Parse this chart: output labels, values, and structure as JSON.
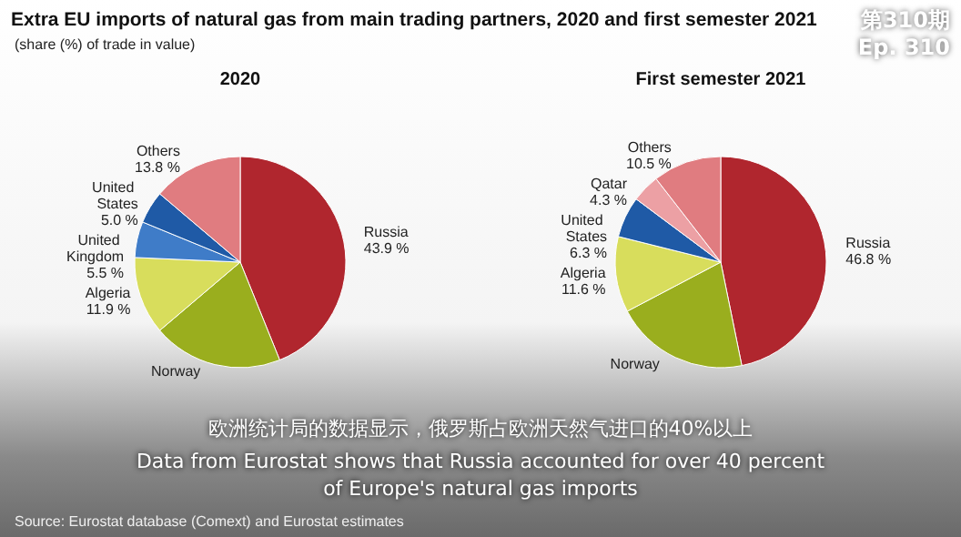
{
  "chart_data": [
    {
      "type": "other",
      "title": "Extra EU imports of natural gas from main trading partners, 2020 and first semester 2021",
      "subtitle": "(share (%) of trade in value)",
      "annotations": [
        "第310期",
        "Ep. 310",
        "欧洲统计局的数据显示，俄罗斯占欧洲天然气进口的40%以上",
        "Data from Eurostat shows that Russia accounted for over 40 percent of Europe's natural gas imports",
        "Source: Eurostat database (Comext) and Eurostat estimates"
      ]
    },
    {
      "type": "pie",
      "title": "2020",
      "categories": [
        "Russia",
        "Norway",
        "Algeria",
        "United Kingdom",
        "United States",
        "Others"
      ],
      "values": [
        43.9,
        19.9,
        11.9,
        5.5,
        5.0,
        13.8
      ],
      "value_labels": [
        "43.9 %",
        null,
        "11.9 %",
        "5.5 %",
        "5.0 %",
        "13.8 %"
      ],
      "colors": [
        "#b0262e",
        "#9aae1e",
        "#d8dd5c",
        "#3f7cc8",
        "#1f5aa6",
        "#e07c80"
      ]
    },
    {
      "type": "pie",
      "title": "First semester 2021",
      "categories": [
        "Russia",
        "Norway",
        "Algeria",
        "United States",
        "Qatar",
        "Others"
      ],
      "values": [
        46.8,
        20.5,
        11.6,
        6.3,
        4.3,
        10.5
      ],
      "value_labels": [
        "46.8 %",
        null,
        "11.6 %",
        "6.3 %",
        "4.3 %",
        "10.5 %"
      ],
      "colors": [
        "#b0262e",
        "#9aae1e",
        "#d8dd5c",
        "#1f5aa6",
        "#eca0a4",
        "#e07c80"
      ]
    }
  ]
}
